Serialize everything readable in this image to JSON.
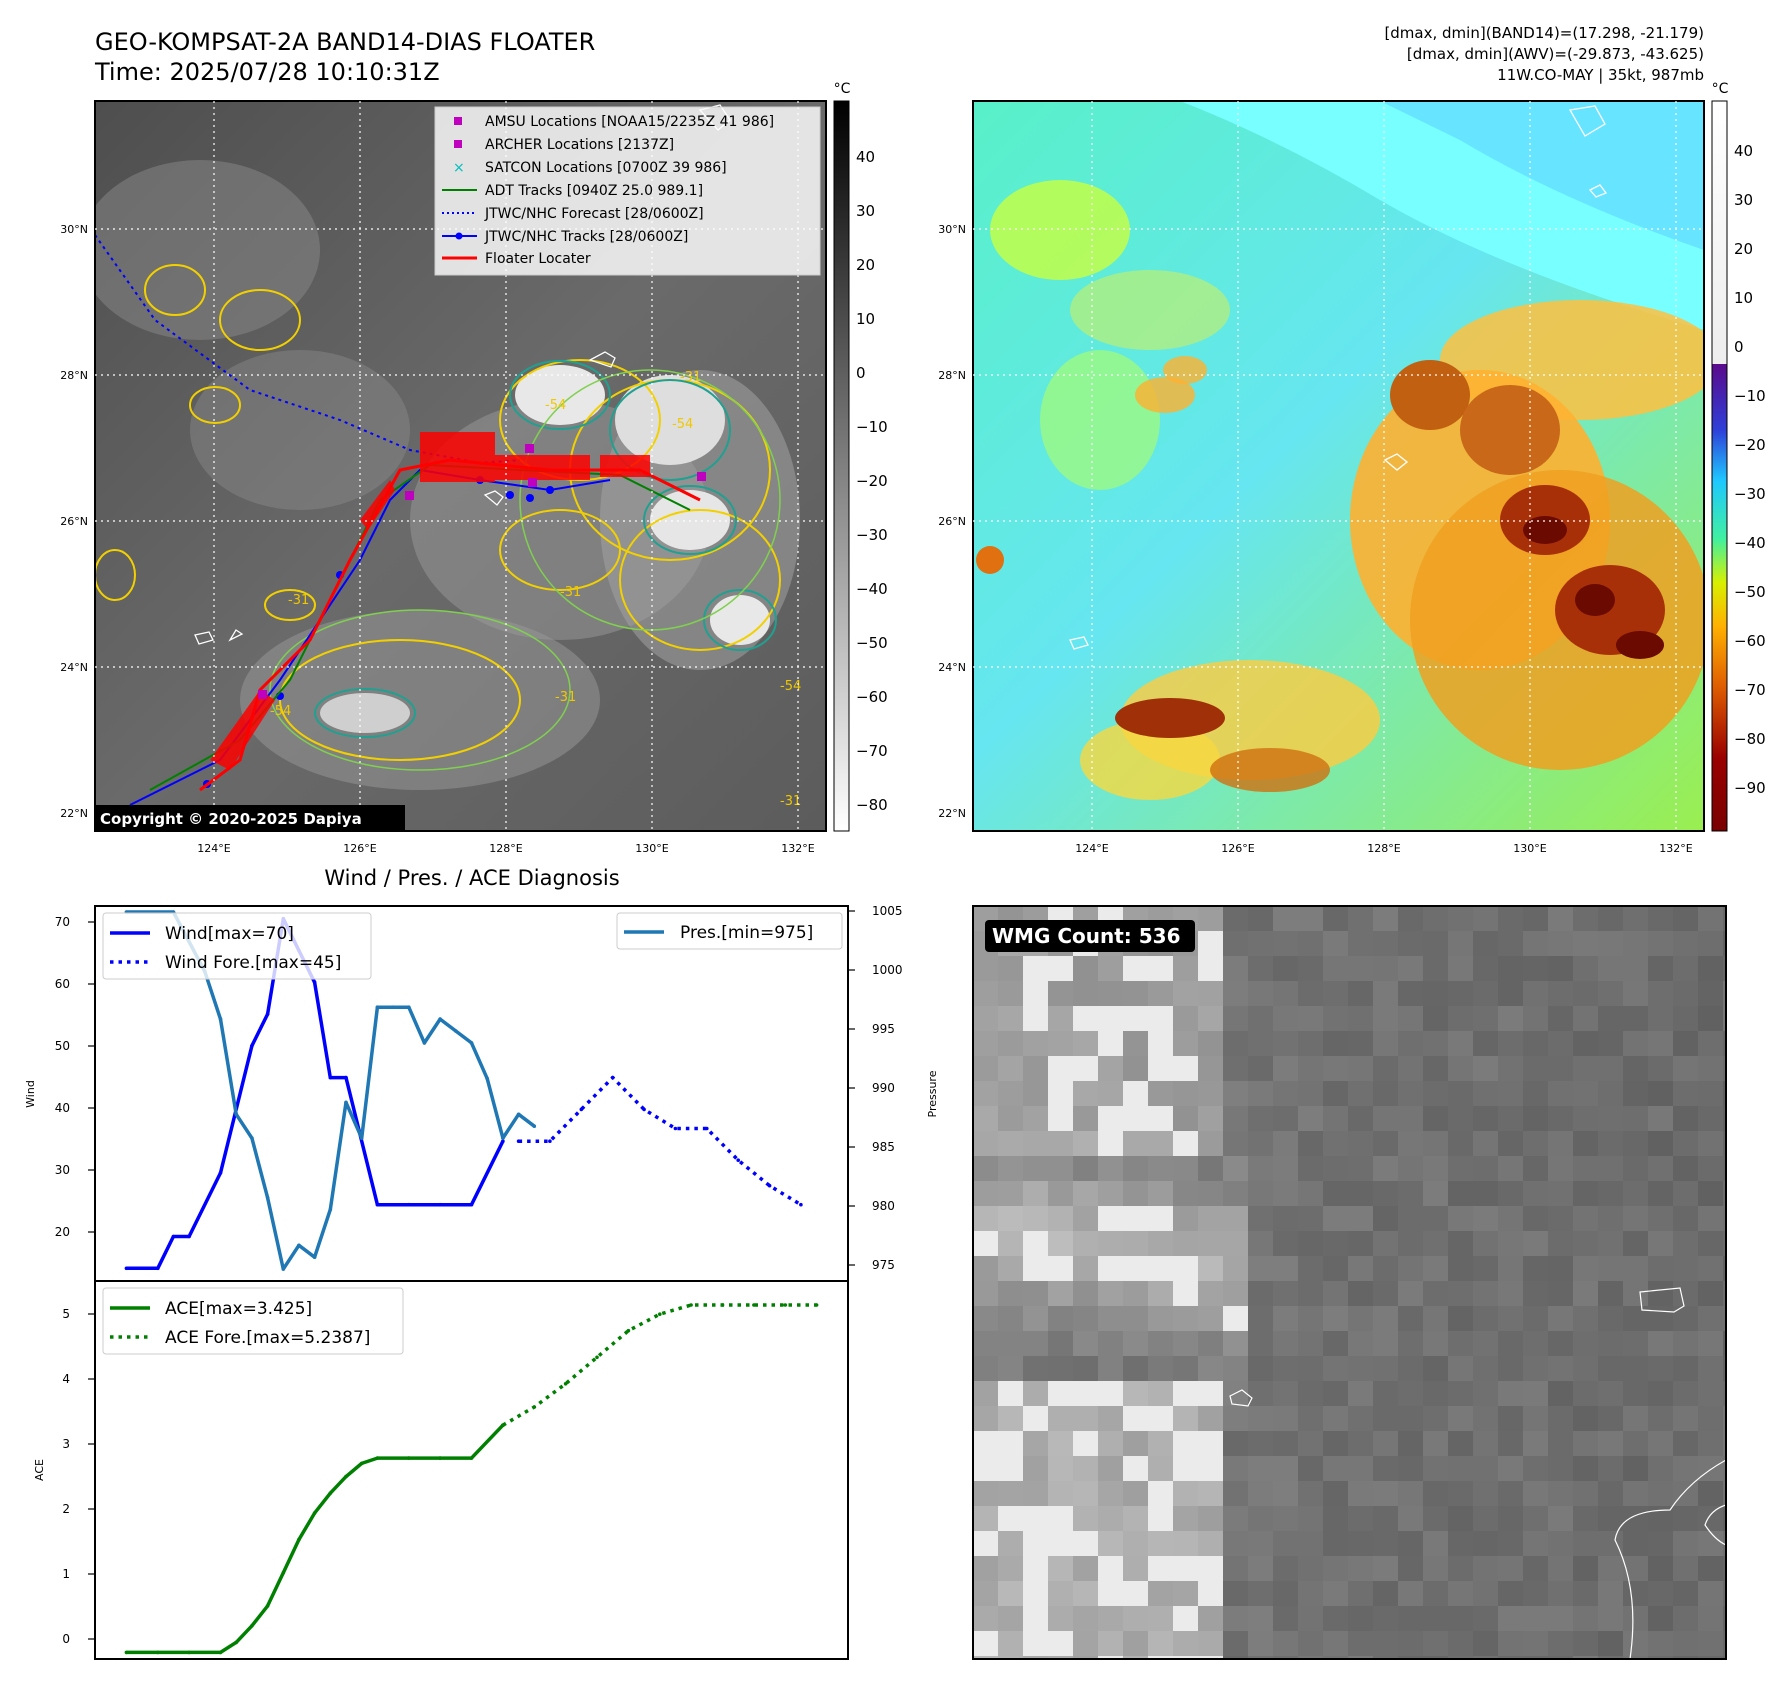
{
  "header": {
    "title_line1": "GEO-KOMPSAT-2A BAND14-DIAS FLOATER",
    "title_line2": "Time: 2025/07/28 10:10:31Z",
    "info_line1": "[dmax, dmin](BAND14)=(17.298, -21.179)",
    "info_line2": "[dmax, dmin](AWV)=(-29.873, -43.625)",
    "info_line3": "11W.CO-MAY | 35kt, 987mb"
  },
  "map_axes": {
    "lat_ticks": [
      "30°N",
      "28°N",
      "26°N",
      "24°N",
      "22°N"
    ],
    "lon_ticks": [
      "124°E",
      "126°E",
      "128°E",
      "130°E",
      "132°E"
    ]
  },
  "ir_panel": {
    "colorbar_unit": "°C",
    "colorbar_ticks": [
      "40",
      "30",
      "20",
      "10",
      "0",
      "−10",
      "−20",
      "−30",
      "−40",
      "−50",
      "−60",
      "−70",
      "−80"
    ],
    "copyright": "Copyright © 2020-2025 Dapiya",
    "contour_labels": [
      "-54",
      "-31",
      "-31",
      "-31",
      "-54",
      "-54",
      "-31",
      "-54",
      "-31"
    ],
    "legend": [
      {
        "label": "AMSU Locations [NOAA15/2235Z 41 986]",
        "color": "#bf00bf"
      },
      {
        "label": "ARCHER Locations [2137Z]",
        "color": "#bf00bf"
      },
      {
        "label": "SATCON Locations [0700Z 39 986]",
        "color": "#00bfbf"
      },
      {
        "label": "ADT Tracks [0940Z 25.0 989.1]",
        "color": "#008000"
      },
      {
        "label": "JTWC/NHC Forecast [28/0600Z]",
        "color": "#0000ff"
      },
      {
        "label": "JTWC/NHC Tracks [28/0600Z]",
        "color": "#0000ff"
      },
      {
        "label": "Floater Locater",
        "color": "#ff0000"
      }
    ]
  },
  "color_panel": {
    "colorbar_unit": "°C",
    "colorbar_ticks": [
      "40",
      "30",
      "20",
      "10",
      "0",
      "−10",
      "−20",
      "−30",
      "−40",
      "−50",
      "−60",
      "−70",
      "−80",
      "−90"
    ]
  },
  "wmg_panel": {
    "badge": "WMG Count: 536"
  },
  "chart_data": [
    {
      "type": "line",
      "title": "Wind / Pres. / ACE Diagnosis",
      "ylabel": "Wind",
      "y2label": "Pressure",
      "ylim": [
        13,
        72
      ],
      "y2lim": [
        974,
        1005.5
      ],
      "xlim": [
        -1,
        23
      ],
      "yticks": [
        "70",
        "60",
        "50",
        "40",
        "30",
        "20"
      ],
      "y2ticks": [
        "1005",
        "1000",
        "995",
        "990",
        "985",
        "980",
        "975"
      ],
      "legend_left": [
        "Wind[max=70]",
        "Wind Fore.[max=45]"
      ],
      "legend_right": [
        "Pres.[min=975]"
      ],
      "series": [
        {
          "name": "Wind[max=70]",
          "style": "solid",
          "color": "#0000ff",
          "axis": "left",
          "x": [
            0,
            1,
            1.5,
            2,
            3,
            4,
            4.5,
            5,
            5.5,
            6,
            6.5,
            7,
            8,
            9,
            10,
            11,
            12
          ],
          "y": [
            15,
            15,
            20,
            20,
            30,
            50,
            55,
            70,
            65,
            60,
            45,
            45,
            25,
            25,
            25,
            25,
            35
          ]
        },
        {
          "name": "Wind Fore.[max=45]",
          "style": "dotted",
          "color": "#0000ff",
          "axis": "left",
          "x": [
            12.5,
            13.5,
            14.5,
            15.5,
            16.5,
            17.5,
            18.5,
            19.5,
            20.5,
            21.5
          ],
          "y": [
            35,
            35,
            40,
            45,
            40,
            37,
            37,
            32,
            28,
            25
          ]
        },
        {
          "name": "Pres.[min=975]",
          "style": "solid",
          "color": "#1f77b4",
          "axis": "right",
          "x": [
            0,
            1.5,
            2.5,
            3,
            3.5,
            4,
            4.5,
            5,
            5.5,
            6,
            6.5,
            7,
            7.5,
            8,
            8.5,
            9,
            9.5,
            10,
            10.5,
            11,
            11.5,
            12,
            12.5,
            13
          ],
          "y": [
            1005,
            1005,
            1000,
            996,
            988,
            986,
            981,
            975,
            977,
            976,
            980,
            989,
            986,
            997,
            997,
            997,
            994,
            996,
            995,
            994,
            991,
            986,
            988,
            987
          ]
        }
      ]
    },
    {
      "type": "line",
      "ylabel": "ACE",
      "ylim": [
        -0.1,
        5.6
      ],
      "xlim": [
        -1,
        23
      ],
      "yticks": [
        "5",
        "4",
        "3",
        "2",
        "1",
        "0"
      ],
      "legend": [
        "ACE[max=3.425]",
        "ACE Fore.[max=5.2387]"
      ],
      "series": [
        {
          "name": "ACE[max=3.425]",
          "style": "solid",
          "color": "#008000",
          "x": [
            0,
            1,
            2,
            3,
            3.5,
            4,
            4.5,
            5,
            5.5,
            6,
            6.5,
            7,
            7.5,
            8,
            9,
            10,
            11,
            12
          ],
          "y": [
            0,
            0,
            0,
            0,
            0.15,
            0.4,
            0.7,
            1.2,
            1.7,
            2.1,
            2.4,
            2.65,
            2.85,
            2.93,
            2.93,
            2.93,
            2.93,
            3.425
          ]
        },
        {
          "name": "ACE Fore.[max=5.2387]",
          "style": "dotted",
          "color": "#008000",
          "x": [
            12,
            13,
            14,
            15,
            16,
            17,
            18,
            19,
            20,
            21,
            22
          ],
          "y": [
            3.425,
            3.7,
            4.05,
            4.45,
            4.85,
            5.1,
            5.2387,
            5.2387,
            5.2387,
            5.2387,
            5.2387
          ]
        }
      ]
    }
  ]
}
